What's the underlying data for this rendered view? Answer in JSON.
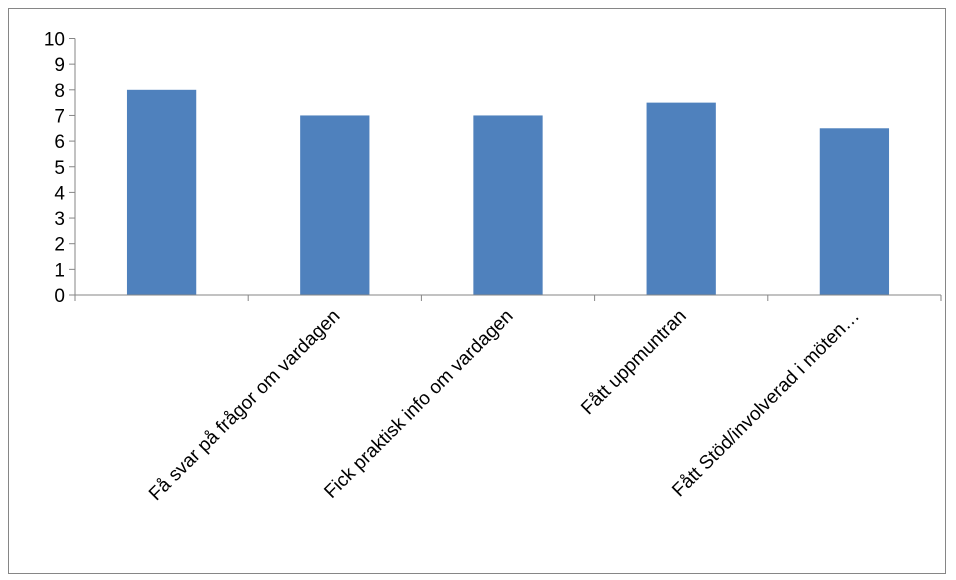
{
  "chart_data": {
    "type": "bar",
    "categories": [
      "",
      "Få svar på frågor om vardagen",
      "Fick praktisk info om vardagen",
      "Fått uppmuntran",
      "Fått Stöd/involverad i möten…"
    ],
    "series": [
      {
        "values": [
          8,
          7,
          7,
          7.5,
          6.5
        ]
      }
    ],
    "title": "",
    "xlabel": "",
    "ylabel": "",
    "ylim": [
      0,
      10
    ],
    "yticks": [
      "0",
      "1",
      "2",
      "3",
      "4",
      "5",
      "6",
      "7",
      "8",
      "9",
      "10"
    ],
    "grid": false,
    "legend": "none",
    "colors": {
      "bar": "#4F81BD",
      "axis": "#868686",
      "frame": "#868686"
    }
  }
}
